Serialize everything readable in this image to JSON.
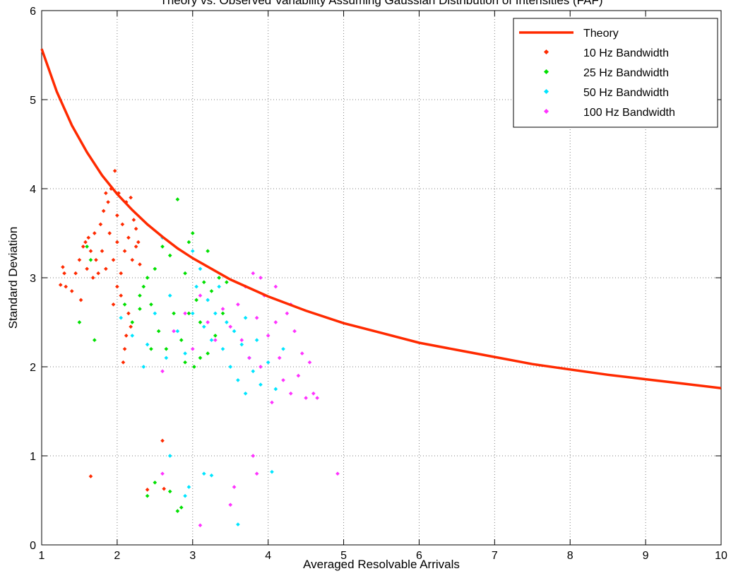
{
  "chart_data": {
    "type": "scatter",
    "title": "Theory vs. Observed Variability Assuming Gaussian Distribution of Intensities (FAF)",
    "xlabel": "Averaged Resolvable Arrivals",
    "ylabel": "Standard Deviation",
    "xlim": [
      1,
      10
    ],
    "ylim": [
      0,
      6
    ],
    "xticks": [
      "1",
      "2",
      "3",
      "4",
      "5",
      "6",
      "7",
      "8",
      "9",
      "10"
    ],
    "yticks": [
      "0",
      "1",
      "2",
      "3",
      "4",
      "5",
      "6"
    ],
    "grid": true,
    "legend_position": "top-right",
    "theory": {
      "name": "Theory",
      "color": "#ff2a00",
      "x": [
        1.0,
        1.2,
        1.4,
        1.6,
        1.8,
        2.0,
        2.2,
        2.4,
        2.6,
        2.8,
        3.0,
        3.5,
        4.0,
        4.5,
        5.0,
        5.5,
        6.0,
        6.5,
        7.0,
        7.5,
        8.0,
        8.5,
        9.0,
        9.5,
        10.0
      ],
      "y": [
        5.57,
        5.09,
        4.71,
        4.41,
        4.15,
        3.94,
        3.76,
        3.6,
        3.46,
        3.33,
        3.22,
        2.98,
        2.79,
        2.63,
        2.49,
        2.38,
        2.27,
        2.19,
        2.11,
        2.03,
        1.97,
        1.91,
        1.86,
        1.81,
        1.76
      ]
    },
    "series": [
      {
        "name": "10 Hz Bandwidth",
        "color": "#ff2a00",
        "points": [
          [
            1.25,
            2.92
          ],
          [
            1.28,
            3.12
          ],
          [
            1.3,
            3.05
          ],
          [
            1.32,
            2.9
          ],
          [
            1.4,
            2.85
          ],
          [
            1.45,
            3.05
          ],
          [
            1.5,
            3.2
          ],
          [
            1.52,
            2.75
          ],
          [
            1.55,
            3.35
          ],
          [
            1.58,
            3.4
          ],
          [
            1.6,
            3.1
          ],
          [
            1.62,
            3.45
          ],
          [
            1.65,
            3.3
          ],
          [
            1.68,
            3.0
          ],
          [
            1.7,
            3.5
          ],
          [
            1.72,
            3.2
          ],
          [
            1.75,
            3.05
          ],
          [
            1.78,
            3.6
          ],
          [
            1.8,
            3.3
          ],
          [
            1.82,
            3.75
          ],
          [
            1.85,
            3.1
          ],
          [
            1.88,
            3.85
          ],
          [
            1.9,
            3.5
          ],
          [
            1.92,
            4.0
          ],
          [
            1.95,
            3.2
          ],
          [
            1.97,
            4.2
          ],
          [
            2.0,
            3.4
          ],
          [
            2.02,
            3.95
          ],
          [
            2.05,
            3.05
          ],
          [
            2.07,
            3.6
          ],
          [
            2.1,
            3.3
          ],
          [
            2.12,
            3.85
          ],
          [
            2.15,
            3.45
          ],
          [
            2.18,
            3.9
          ],
          [
            2.2,
            3.2
          ],
          [
            2.22,
            3.65
          ],
          [
            2.25,
            3.35
          ],
          [
            2.28,
            3.4
          ],
          [
            2.3,
            3.15
          ],
          [
            2.08,
            2.05
          ],
          [
            2.1,
            2.2
          ],
          [
            2.12,
            2.35
          ],
          [
            2.15,
            2.6
          ],
          [
            2.18,
            2.45
          ],
          [
            2.0,
            2.9
          ],
          [
            1.95,
            2.7
          ],
          [
            2.05,
            2.8
          ],
          [
            1.65,
            0.77
          ],
          [
            2.4,
            0.62
          ],
          [
            2.6,
            1.17
          ],
          [
            2.62,
            0.63
          ],
          [
            1.85,
            3.95
          ],
          [
            2.0,
            3.7
          ],
          [
            2.25,
            3.55
          ]
        ]
      },
      {
        "name": "25 Hz Bandwidth",
        "color": "#00e000",
        "points": [
          [
            1.5,
            2.5
          ],
          [
            1.6,
            3.35
          ],
          [
            1.7,
            2.3
          ],
          [
            1.65,
            3.2
          ],
          [
            2.1,
            2.7
          ],
          [
            2.2,
            2.5
          ],
          [
            2.3,
            2.65
          ],
          [
            2.35,
            2.9
          ],
          [
            2.4,
            3.0
          ],
          [
            2.45,
            2.7
          ],
          [
            2.5,
            3.1
          ],
          [
            2.55,
            2.4
          ],
          [
            2.6,
            3.35
          ],
          [
            2.65,
            2.2
          ],
          [
            2.7,
            3.25
          ],
          [
            2.75,
            2.6
          ],
          [
            2.8,
            3.88
          ],
          [
            2.85,
            2.3
          ],
          [
            2.9,
            3.05
          ],
          [
            2.95,
            3.4
          ],
          [
            3.0,
            3.5
          ],
          [
            3.02,
            2.0
          ],
          [
            3.05,
            2.75
          ],
          [
            3.1,
            2.5
          ],
          [
            3.15,
            2.95
          ],
          [
            3.2,
            2.15
          ],
          [
            3.25,
            2.85
          ],
          [
            3.3,
            2.35
          ],
          [
            3.35,
            3.0
          ],
          [
            3.4,
            2.6
          ],
          [
            3.45,
            2.95
          ],
          [
            3.1,
            2.1
          ],
          [
            2.9,
            2.05
          ],
          [
            2.45,
            2.2
          ],
          [
            2.5,
            0.7
          ],
          [
            2.4,
            0.55
          ],
          [
            2.8,
            0.38
          ],
          [
            2.85,
            0.42
          ],
          [
            2.7,
            0.6
          ],
          [
            2.3,
            2.8
          ],
          [
            2.95,
            2.6
          ],
          [
            3.2,
            3.3
          ]
        ]
      },
      {
        "name": "50 Hz Bandwidth",
        "color": "#00e5ff",
        "points": [
          [
            2.05,
            2.55
          ],
          [
            2.35,
            2.0
          ],
          [
            2.4,
            2.25
          ],
          [
            2.5,
            2.6
          ],
          [
            2.6,
            3.45
          ],
          [
            2.65,
            2.1
          ],
          [
            2.7,
            2.8
          ],
          [
            2.8,
            2.4
          ],
          [
            2.9,
            2.15
          ],
          [
            3.0,
            2.6
          ],
          [
            3.05,
            2.9
          ],
          [
            3.1,
            3.1
          ],
          [
            3.15,
            2.45
          ],
          [
            3.2,
            2.75
          ],
          [
            3.25,
            2.3
          ],
          [
            3.3,
            2.6
          ],
          [
            3.35,
            2.9
          ],
          [
            3.4,
            2.2
          ],
          [
            3.45,
            2.5
          ],
          [
            3.5,
            2.0
          ],
          [
            3.55,
            2.4
          ],
          [
            3.6,
            1.85
          ],
          [
            3.65,
            2.25
          ],
          [
            3.7,
            1.7
          ],
          [
            3.75,
            2.1
          ],
          [
            3.8,
            1.95
          ],
          [
            3.85,
            2.3
          ],
          [
            3.9,
            1.8
          ],
          [
            4.0,
            2.05
          ],
          [
            4.1,
            1.75
          ],
          [
            4.2,
            2.2
          ],
          [
            2.2,
            2.35
          ],
          [
            3.0,
            3.3
          ],
          [
            2.7,
            1.0
          ],
          [
            2.95,
            0.65
          ],
          [
            3.15,
            0.8
          ],
          [
            3.25,
            0.78
          ],
          [
            3.6,
            0.23
          ],
          [
            4.05,
            0.82
          ],
          [
            2.9,
            0.55
          ],
          [
            3.7,
            2.55
          ]
        ]
      },
      {
        "name": "100 Hz Bandwidth",
        "color": "#ff33ff",
        "points": [
          [
            2.6,
            1.95
          ],
          [
            2.75,
            2.4
          ],
          [
            2.9,
            2.6
          ],
          [
            3.0,
            2.2
          ],
          [
            3.1,
            2.8
          ],
          [
            3.2,
            2.5
          ],
          [
            3.3,
            2.3
          ],
          [
            3.4,
            2.65
          ],
          [
            3.5,
            2.45
          ],
          [
            3.6,
            2.7
          ],
          [
            3.65,
            2.3
          ],
          [
            3.7,
            2.9
          ],
          [
            3.75,
            2.1
          ],
          [
            3.8,
            3.05
          ],
          [
            3.85,
            2.55
          ],
          [
            3.9,
            2.0
          ],
          [
            3.95,
            2.8
          ],
          [
            4.0,
            2.35
          ],
          [
            4.05,
            1.6
          ],
          [
            4.1,
            2.5
          ],
          [
            4.15,
            2.1
          ],
          [
            4.2,
            1.85
          ],
          [
            4.25,
            2.6
          ],
          [
            4.3,
            1.7
          ],
          [
            4.35,
            2.4
          ],
          [
            4.4,
            1.9
          ],
          [
            4.45,
            2.15
          ],
          [
            4.5,
            1.65
          ],
          [
            4.55,
            2.05
          ],
          [
            4.6,
            1.7
          ],
          [
            4.65,
            1.65
          ],
          [
            4.1,
            2.9
          ],
          [
            3.9,
            3.0
          ],
          [
            3.8,
            1.0
          ],
          [
            3.85,
            0.8
          ],
          [
            3.5,
            0.45
          ],
          [
            3.55,
            0.65
          ],
          [
            3.1,
            0.22
          ],
          [
            2.6,
            0.8
          ],
          [
            4.92,
            0.8
          ],
          [
            4.3,
            2.7
          ]
        ]
      }
    ]
  }
}
